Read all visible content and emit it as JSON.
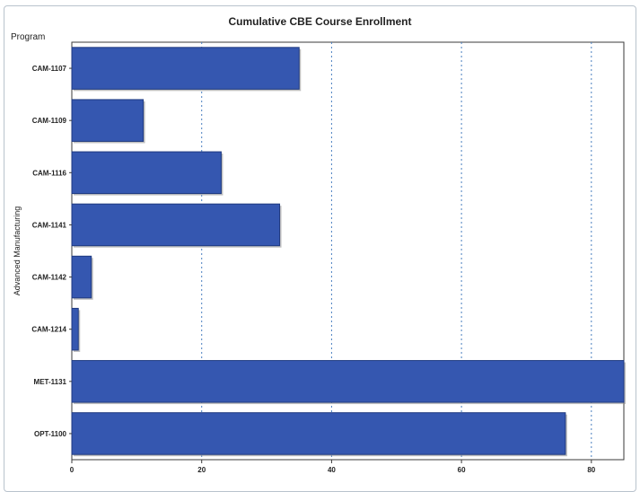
{
  "chart_data": {
    "type": "bar",
    "orientation": "horizontal",
    "title": "Cumulative CBE Course Enrollment",
    "y_header": "Program",
    "group_label": "Advanced Manufacturing",
    "categories": [
      "CAM-1107",
      "CAM-1109",
      "CAM-1116",
      "CAM-1141",
      "CAM-1142",
      "CAM-1214",
      "MET-1131",
      "OPT-1100"
    ],
    "values": [
      35,
      11,
      23,
      32,
      3,
      1,
      85,
      76
    ],
    "xlim": [
      0,
      85
    ],
    "x_ticks": [
      0,
      20,
      40,
      60,
      80
    ],
    "grid": "vertical dashed",
    "bar_color": "#3557b0"
  }
}
